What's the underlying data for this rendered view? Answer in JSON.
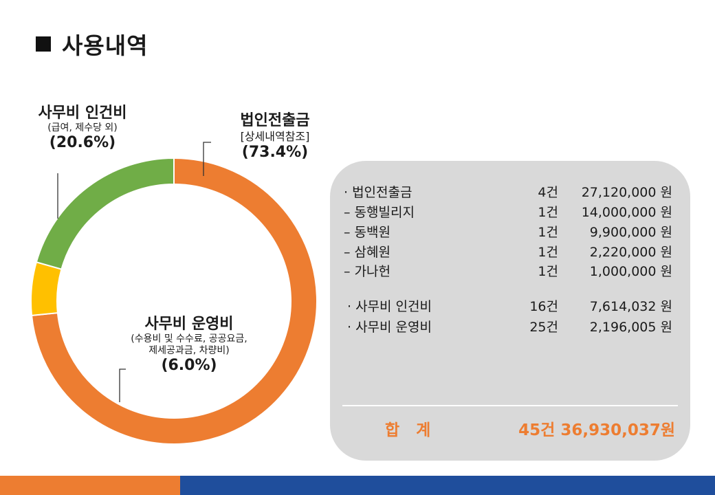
{
  "page": {
    "title": "사용내역"
  },
  "colors": {
    "orange": "#ed7d31",
    "green": "#70ad47",
    "yellow": "#ffc000",
    "blue": "#1f4e9c",
    "panel": "#d9d9d9"
  },
  "chart_data": {
    "type": "pie",
    "style": "donut",
    "slices": [
      {
        "name": "법인전출금",
        "detail": "[상세내역참조]",
        "value": 73.4,
        "label": "(73.4%)",
        "color": "#ed7d31"
      },
      {
        "name": "사무비 운영비",
        "detail": "(수용비 및 수수료, 공공요금, 제세공과금, 차량비)",
        "value": 6.0,
        "label": "(6.0%)",
        "color": "#ffc000"
      },
      {
        "name": "사무비 인건비",
        "detail": "(급여, 제수당 외)",
        "value": 20.6,
        "label": "(20.6%)",
        "color": "#70ad47"
      }
    ]
  },
  "labels": {
    "corp": {
      "name": "법인전출금",
      "sub": "[상세내역참조]",
      "pct": "(73.4%)"
    },
    "personnel": {
      "name": "사무비 인건비",
      "sub": "(급여, 제수당 외)",
      "pct": "(20.6%)"
    },
    "operating": {
      "name": "사무비 운영비",
      "sub1": "(수용비 및  수수료, 공공요금,",
      "sub2": "제세공과금, 차량비)",
      "pct": "(6.0%)"
    }
  },
  "details": {
    "rows": [
      {
        "item": "· 법인전출금",
        "count": "4건",
        "amount": "27,120,000 원"
      },
      {
        "item": "– 동행빌리지",
        "count": "1건",
        "amount": "14,000,000 원"
      },
      {
        "item": "– 동백원",
        "count": "1건",
        "amount": "9,900,000 원"
      },
      {
        "item": "– 삼혜원",
        "count": "1건",
        "amount": "2,220,000 원"
      },
      {
        "item": "– 가나헌",
        "count": "1건",
        "amount": "1,000,000 원"
      },
      {
        "item": "· 사무비 인건비",
        "count": "16건",
        "amount": "7,614,032  원"
      },
      {
        "item": "· 사무비 운영비",
        "count": "25건",
        "amount": "2,196,005  원"
      }
    ],
    "total": {
      "label": "합   계",
      "value": "45건 36,930,037원"
    }
  }
}
